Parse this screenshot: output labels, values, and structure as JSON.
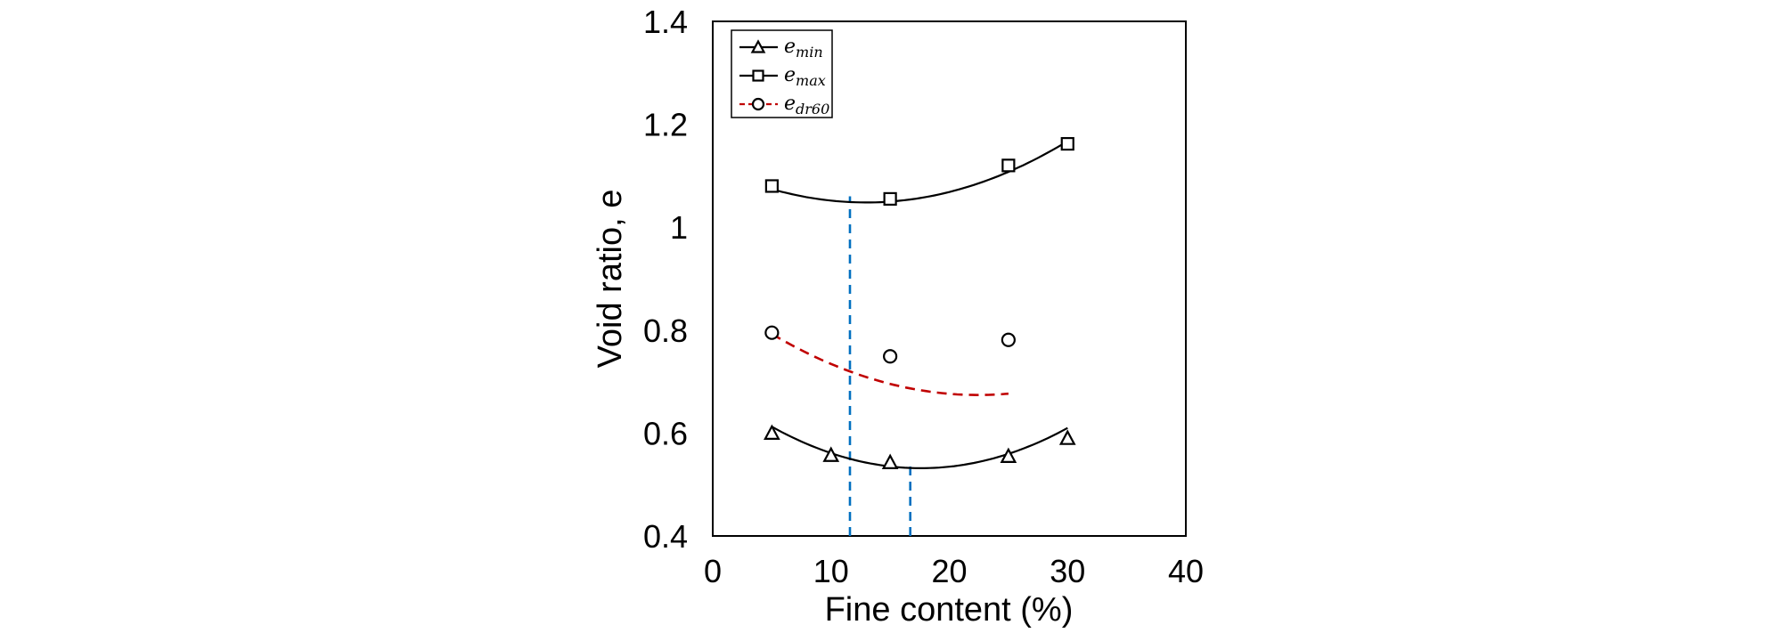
{
  "chart_data": {
    "type": "scatter",
    "xlabel": "Fine content (%)",
    "ylabel": "Void ratio, e",
    "xlim": [
      0,
      40
    ],
    "ylim": [
      0.4,
      1.4
    ],
    "xticks": [
      "0",
      "10",
      "20",
      "30",
      "40"
    ],
    "yticks": [
      "0.4",
      "0.6",
      "0.8",
      "1",
      "1.2",
      "1.4"
    ],
    "grid": false,
    "legend_position": "top-left",
    "series": [
      {
        "key": "emin",
        "name_base": "e",
        "name_sub": "min",
        "marker": "triangle",
        "line_style": "solid",
        "line_color": "#000000",
        "x": [
          5,
          10,
          15,
          25,
          30
        ],
        "y": [
          0.6,
          0.557,
          0.543,
          0.555,
          0.59
        ],
        "fit": {
          "type": "polynomial",
          "x_range": [
            5,
            30
          ],
          "coefficients": [
            0.689,
            -0.01788,
            0.000508
          ]
        }
      },
      {
        "key": "emax",
        "name_base": "e",
        "name_sub": "max",
        "marker": "square",
        "line_style": "solid",
        "line_color": "#000000",
        "x": [
          5,
          15,
          25,
          30
        ],
        "y": [
          1.08,
          1.055,
          1.12,
          1.162
        ],
        "fit": {
          "type": "polynomial",
          "x_range": [
            5,
            30
          ],
          "coefficients": [
            1.117,
            -0.01063,
            0.00041
          ]
        }
      },
      {
        "key": "edr60",
        "name_base": "e",
        "name_sub": "dr60",
        "marker": "circle",
        "line_style": "dashed",
        "line_color": "#c00000",
        "x": [
          5,
          15,
          25
        ],
        "y": [
          0.795,
          0.749,
          0.781
        ],
        "fit": {
          "type": "polynomial",
          "x_range": [
            5,
            25
          ],
          "coefficients": [
            0.87025,
            -0.0175,
            0.00039
          ]
        }
      }
    ],
    "reference_lines": [
      {
        "type": "vertical",
        "style": "dashed",
        "color": "#0070c0",
        "x": 11.6,
        "y_from": 0.4,
        "y_to": 1.06
      },
      {
        "type": "vertical",
        "style": "dashed",
        "color": "#0070c0",
        "x": 16.7,
        "y_from": 0.4,
        "y_to": 0.545
      }
    ]
  }
}
